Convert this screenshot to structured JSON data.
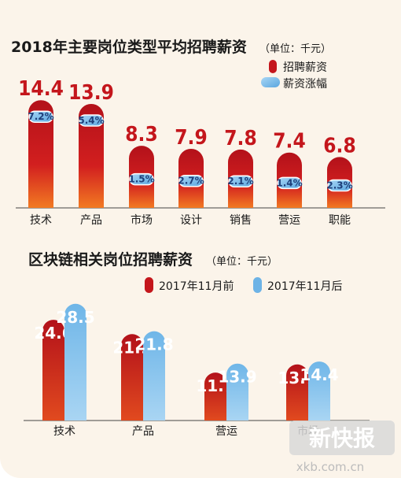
{
  "chart_data": [
    {
      "type": "bar",
      "title": "2018年主要岗位类型平均招聘薪资",
      "unit": "（单位：千元）",
      "categories": [
        "技术",
        "产品",
        "市场",
        "设计",
        "销售",
        "营运",
        "职能"
      ],
      "series": [
        {
          "name": "招聘薪资",
          "values": [
            14.4,
            13.9,
            8.3,
            7.9,
            7.8,
            7.4,
            6.8
          ],
          "color": "#c4161c"
        },
        {
          "name": "薪资涨幅",
          "values": [
            "7.2%",
            "5.4%",
            "1.5%",
            "2.7%",
            "2.1%",
            "1.4%",
            "2.3%"
          ],
          "color": "#6db3e6"
        }
      ],
      "legend_position": "top-right"
    },
    {
      "type": "bar",
      "title": "区块链相关岗位招聘薪资",
      "unit": "（单位：千元）",
      "categories": [
        "技术",
        "产品",
        "营运",
        "市场"
      ],
      "series": [
        {
          "name": "2017年11月前",
          "values": [
            24.6,
            21.1,
            11.7,
            13.7
          ],
          "color": "#c4161c"
        },
        {
          "name": "2017年11月后",
          "values": [
            28.5,
            21.8,
            13.9,
            14.4
          ],
          "color": "#6db3e6"
        }
      ],
      "legend_position": "top"
    }
  ],
  "watermark": {
    "text": "新快报",
    "url": "xkb.com.cn"
  }
}
